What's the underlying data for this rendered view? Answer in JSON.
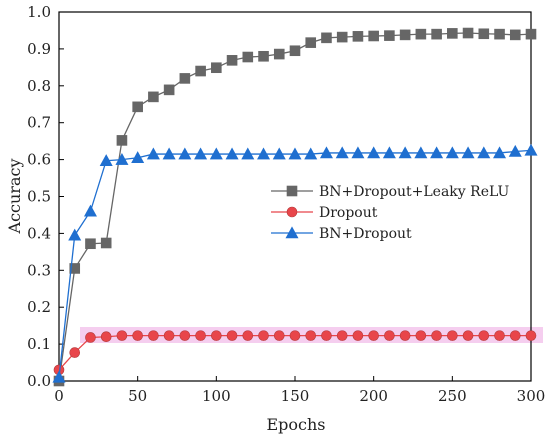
{
  "chart_data": {
    "type": "line",
    "xlabel": "Epochs",
    "ylabel": "Accuracy",
    "xlim": [
      0,
      300
    ],
    "ylim": [
      0,
      1.0
    ],
    "x_ticks": [
      0,
      50,
      100,
      150,
      200,
      250,
      300
    ],
    "y_ticks": [
      0.0,
      0.1,
      0.2,
      0.3,
      0.4,
      0.5,
      0.6,
      0.7,
      0.8,
      0.9,
      1.0
    ],
    "x_tick_labels": [
      "0",
      "50",
      "100",
      "150",
      "200",
      "250",
      "300"
    ],
    "y_tick_labels": [
      "0.0",
      "0.1",
      "0.2",
      "0.3",
      "0.4",
      "0.5",
      "0.6",
      "0.7",
      "0.8",
      "0.9",
      "1.0"
    ],
    "grid": false,
    "legend_position": "center-right",
    "series": [
      {
        "name": "BN+Dropout+Leaky ReLU",
        "color": "#666666",
        "marker": "square",
        "x": [
          0,
          10,
          20,
          30,
          40,
          50,
          60,
          70,
          80,
          90,
          100,
          110,
          120,
          130,
          140,
          150,
          160,
          170,
          180,
          190,
          200,
          210,
          220,
          230,
          240,
          250,
          260,
          270,
          280,
          290,
          300
        ],
        "y": [
          0.0,
          0.305,
          0.372,
          0.374,
          0.652,
          0.743,
          0.77,
          0.789,
          0.82,
          0.84,
          0.849,
          0.869,
          0.878,
          0.88,
          0.886,
          0.895,
          0.917,
          0.93,
          0.932,
          0.934,
          0.935,
          0.936,
          0.938,
          0.94,
          0.94,
          0.942,
          0.943,
          0.941,
          0.94,
          0.938,
          0.94
        ]
      },
      {
        "name": "Dropout",
        "color": "#e8454a",
        "marker": "circle",
        "x": [
          0,
          10,
          20,
          30,
          40,
          50,
          60,
          70,
          80,
          90,
          100,
          110,
          120,
          130,
          140,
          150,
          160,
          170,
          180,
          190,
          200,
          210,
          220,
          230,
          240,
          250,
          260,
          270,
          280,
          290,
          300
        ],
        "y": [
          0.03,
          0.077,
          0.118,
          0.12,
          0.123,
          0.123,
          0.123,
          0.123,
          0.123,
          0.123,
          0.123,
          0.123,
          0.123,
          0.123,
          0.123,
          0.123,
          0.123,
          0.123,
          0.123,
          0.123,
          0.123,
          0.123,
          0.123,
          0.123,
          0.123,
          0.123,
          0.123,
          0.123,
          0.123,
          0.123,
          0.123
        ]
      },
      {
        "name": "BN+Dropout",
        "color": "#1f6fd0",
        "marker": "triangle",
        "x": [
          0,
          10,
          20,
          30,
          40,
          50,
          60,
          70,
          80,
          90,
          100,
          110,
          120,
          130,
          140,
          150,
          160,
          170,
          180,
          190,
          200,
          210,
          220,
          230,
          240,
          250,
          260,
          270,
          280,
          290,
          300
        ],
        "y": [
          0.01,
          0.395,
          0.46,
          0.597,
          0.6,
          0.605,
          0.615,
          0.615,
          0.615,
          0.615,
          0.615,
          0.615,
          0.615,
          0.615,
          0.615,
          0.615,
          0.615,
          0.618,
          0.618,
          0.618,
          0.618,
          0.618,
          0.618,
          0.618,
          0.618,
          0.618,
          0.618,
          0.618,
          0.618,
          0.622,
          0.625
        ]
      }
    ]
  }
}
